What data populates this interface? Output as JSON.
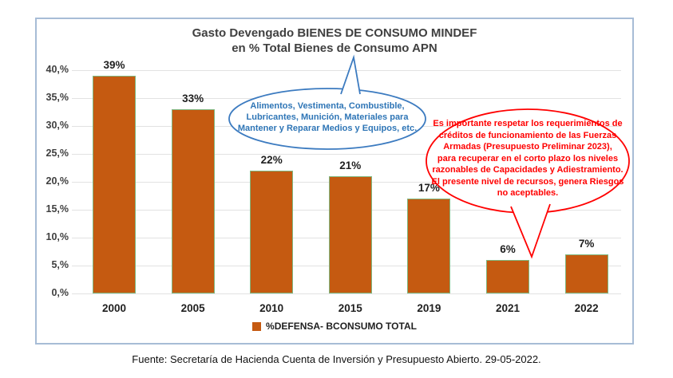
{
  "chart": {
    "title_line1": "Gasto Devengado BIENES DE CONSUMO MINDEF",
    "title_line2": "en % Total Bienes de Consumo APN",
    "legend": {
      "label": "%DEFENSA- BCONSUMO TOTAL",
      "swatch_color": "#C55A11"
    },
    "footer": "Fuente: Secretaría de Hacienda Cuenta de Inversión y Presupuesto Abierto. 29-05-2022."
  },
  "chart_data": {
    "type": "bar",
    "title": "Gasto Devengado BIENES DE CONSUMO MINDEF en % Total Bienes de Consumo APN",
    "categories": [
      "2000",
      "2005",
      "2010",
      "2015",
      "2019",
      "2021",
      "2022"
    ],
    "values": [
      39,
      33,
      22,
      21,
      17,
      6,
      7
    ],
    "value_labels": [
      "39%",
      "33%",
      "22%",
      "21%",
      "17%",
      "6%",
      "7%"
    ],
    "series_name": "%DEFENSA- BCONSUMO TOTAL",
    "xlabel": "",
    "ylabel": "",
    "ylim": [
      0,
      40
    ],
    "ytick_step": 5,
    "ytick_labels": [
      "0,%",
      "5,%",
      "10,%",
      "15,%",
      "20,%",
      "25,%",
      "30,%",
      "35,%",
      "40,%"
    ],
    "grid": true,
    "legend_position": "bottom",
    "bar_color": "#C55A11",
    "bar_border_color": "#7FB77F"
  },
  "callouts": {
    "blue": {
      "color": "#2E75B6",
      "border_color": "#3C7BC0",
      "lines": [
        "Alimentos, Vestimenta, Combustible,",
        "Lubricantes, Munición, Materiales para",
        "Mantener y Reparar Medios y Equipos, etc."
      ]
    },
    "red": {
      "color": "#FF0000",
      "border_color": "#FF0000",
      "lines": [
        "Es importante respetar los requerimientos de",
        "créditos de funcionamiento de las Fuerzas",
        "Armadas (Presupuesto Preliminar 2023),",
        "para recuperar en el corto plazo los niveles",
        "razonables de Capacidades y Adiestramiento.",
        "El presente nivel de recursos, genera Riesgos",
        "no aceptables."
      ]
    }
  }
}
